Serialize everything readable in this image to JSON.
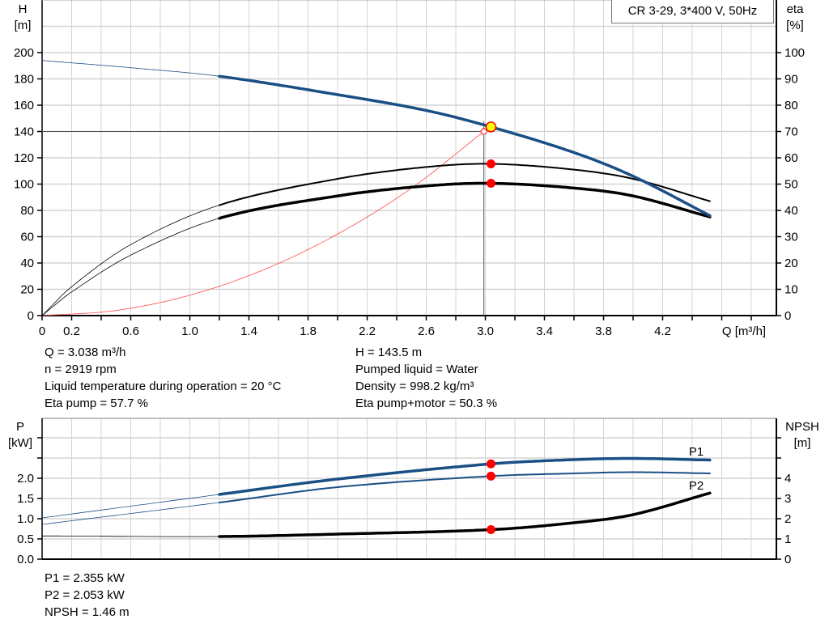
{
  "title": "CR 3-29, 3*400 V, 50Hz",
  "colors": {
    "pump_curve": "#1a4f85",
    "efficiency": "#000000",
    "system_curve": "#ff4a4a",
    "duty_point": "#ff0000",
    "duty_point_fill": "#ffff00",
    "grid": "#d4d4d4"
  },
  "chart_data": [
    {
      "type": "line",
      "xlabel": "Q [m³/h]",
      "ylabel_left": [
        "H",
        "[m]"
      ],
      "ylabel_right": [
        "eta",
        "[%]"
      ],
      "xlim": [
        0,
        4.97
      ],
      "ylim_left": [
        0,
        240
      ],
      "ylim_right": [
        0,
        120
      ],
      "grid": true,
      "x_tick_labels": [
        "0",
        "0.2",
        "0.6",
        "1.0",
        "1.4",
        "1.8",
        "2.2",
        "2.6",
        "3.0",
        "3.4",
        "3.8",
        "4.2"
      ],
      "x_tick_values": [
        0,
        0.2,
        0.6,
        1.0,
        1.4,
        1.8,
        2.2,
        2.6,
        3.0,
        3.4,
        3.8,
        4.2
      ],
      "y_left_ticks": [
        "0",
        "20",
        "40",
        "60",
        "80",
        "100",
        "120",
        "140",
        "160",
        "180",
        "200"
      ],
      "y_right_ticks": [
        "0",
        "10",
        "20",
        "30",
        "40",
        "50",
        "60",
        "70",
        "80",
        "90",
        "100"
      ],
      "series": [
        {
          "key": "H",
          "axis": "left",
          "bold_from": 1.2,
          "points": [
            [
              0,
              194
            ],
            [
              0.6,
              188.5
            ],
            [
              1.2,
              182
            ],
            [
              2.0,
              168
            ],
            [
              2.6,
              156
            ],
            [
              3.038,
              143.5
            ],
            [
              3.6,
              124
            ],
            [
              4.0,
              106
            ],
            [
              4.52,
              76
            ]
          ]
        },
        {
          "key": "eta_pump",
          "axis": "right",
          "bold_from": 1.2,
          "points": [
            [
              0,
              0
            ],
            [
              0.2,
              11
            ],
            [
              0.6,
              27
            ],
            [
              1.2,
              42
            ],
            [
              2.0,
              52
            ],
            [
              2.6,
              56.5
            ],
            [
              3.038,
              57.7
            ],
            [
              3.6,
              55.5
            ],
            [
              4.0,
              52
            ],
            [
              4.52,
              43.5
            ]
          ]
        },
        {
          "key": "eta_total",
          "axis": "right",
          "bold_from": 1.2,
          "points": [
            [
              0,
              0
            ],
            [
              0.2,
              9
            ],
            [
              0.6,
              23
            ],
            [
              1.2,
              37
            ],
            [
              2.0,
              45.5
            ],
            [
              2.6,
              49.3
            ],
            [
              3.038,
              50.3
            ],
            [
              3.6,
              48.5
            ],
            [
              4.0,
              45.5
            ],
            [
              4.52,
              37.5
            ]
          ]
        },
        {
          "key": "system",
          "axis": "left",
          "points": [
            [
              0,
              0
            ],
            [
              0.5,
              3.9
            ],
            [
              1.0,
              15.5
            ],
            [
              1.5,
              34.9
            ],
            [
              2.0,
              62
            ],
            [
              2.5,
              96.9
            ],
            [
              2.99,
              140
            ]
          ]
        }
      ],
      "duty_point": {
        "Q": 3.038,
        "H": 143.5,
        "eta_pump": 57.7,
        "eta_total": 50.3,
        "system_Q": 2.99,
        "system_H": 140
      }
    },
    {
      "type": "line",
      "ylabel_left": [
        "P",
        "[kW]"
      ],
      "ylabel_right": [
        "NPSH",
        "[m]"
      ],
      "xlim": [
        0,
        4.97
      ],
      "ylim_left": [
        0,
        3.5
      ],
      "ylim_right": [
        0,
        7
      ],
      "grid": true,
      "y_left_ticks": [
        "0.0",
        "0.5",
        "1.0",
        "1.5",
        "2.0",
        "",
        ""
      ],
      "y_right_ticks": [
        "0",
        "1",
        "2",
        "3",
        "4",
        "",
        ""
      ],
      "series": [
        {
          "key": "P1",
          "name": "P1",
          "axis": "left",
          "bold_from": 1.2,
          "points": [
            [
              0,
              1.02
            ],
            [
              1.2,
              1.6
            ],
            [
              2.0,
              1.98
            ],
            [
              3.038,
              2.355
            ],
            [
              3.6,
              2.46
            ],
            [
              4.0,
              2.49
            ],
            [
              4.52,
              2.45
            ]
          ]
        },
        {
          "key": "P2",
          "name": "P2",
          "axis": "left",
          "bold_from": 1.2,
          "points": [
            [
              0,
              0.86
            ],
            [
              1.2,
              1.4
            ],
            [
              2.0,
              1.78
            ],
            [
              3.038,
              2.053
            ],
            [
              3.6,
              2.12
            ],
            [
              4.0,
              2.15
            ],
            [
              4.52,
              2.12
            ]
          ]
        },
        {
          "key": "NPSH",
          "axis": "right",
          "bold_from": 1.2,
          "points": [
            [
              0,
              1.15
            ],
            [
              1.2,
              1.12
            ],
            [
              2.0,
              1.24
            ],
            [
              3.038,
              1.46
            ],
            [
              3.6,
              1.8
            ],
            [
              4.0,
              2.2
            ],
            [
              4.52,
              3.27
            ]
          ]
        }
      ],
      "duty_point": {
        "Q": 3.038,
        "P1": 2.355,
        "P2": 2.053,
        "NPSH": 1.46
      }
    }
  ],
  "info_top_left": [
    "Q = 3.038 m³/h",
    "n = 2919 rpm",
    "Liquid temperature during operation = 20 °C",
    "Eta pump = 57.7 %"
  ],
  "info_top_right": [
    "H = 143.5 m",
    "Pumped liquid = Water",
    "Density = 998.2 kg/m³",
    "Eta pump+motor = 50.3 %"
  ],
  "info_bottom": [
    "P1 = 2.355 kW",
    "P2 = 2.053 kW",
    "NPSH = 1.46 m"
  ]
}
